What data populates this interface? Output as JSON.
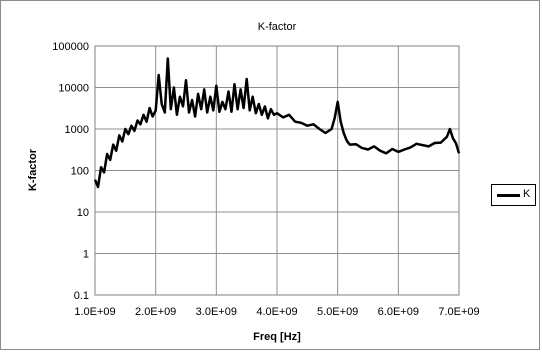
{
  "chart_data": {
    "type": "line",
    "title": "K-factor",
    "xlabel": "Freq [Hz]",
    "ylabel": "K-factor",
    "xscale": "linear",
    "yscale": "log",
    "xlim": [
      1000000000,
      7000000000
    ],
    "ylim": [
      0.1,
      100000
    ],
    "x_ticks": [
      1000000000,
      2000000000,
      3000000000,
      4000000000,
      5000000000,
      6000000000,
      7000000000
    ],
    "x_tick_labels": [
      "1.0E+09",
      "2.0E+09",
      "3.0E+09",
      "4.0E+09",
      "5.0E+09",
      "6.0E+09",
      "7.0E+09"
    ],
    "y_ticks": [
      0.1,
      1,
      10,
      100,
      1000,
      10000,
      100000
    ],
    "y_tick_labels": [
      "0.1",
      "1",
      "10",
      "100",
      "1000",
      "10000",
      "100000"
    ],
    "grid": true,
    "legend": "right",
    "line_color": "#000000",
    "series": [
      {
        "name": "K",
        "x": [
          1000000000,
          1050000000,
          1100000000,
          1150000000,
          1200000000,
          1250000000,
          1300000000,
          1350000000,
          1400000000,
          1450000000,
          1500000000,
          1550000000,
          1600000000,
          1650000000,
          1700000000,
          1750000000,
          1800000000,
          1850000000,
          1900000000,
          1950000000,
          2000000000,
          2050000000,
          2100000000,
          2150000000,
          2200000000,
          2250000000,
          2300000000,
          2350000000,
          2400000000,
          2450000000,
          2500000000,
          2550000000,
          2600000000,
          2650000000,
          2700000000,
          2750000000,
          2800000000,
          2850000000,
          2900000000,
          2950000000,
          3000000000,
          3050000000,
          3100000000,
          3150000000,
          3200000000,
          3250000000,
          3300000000,
          3350000000,
          3400000000,
          3450000000,
          3500000000,
          3550000000,
          3600000000,
          3650000000,
          3700000000,
          3750000000,
          3800000000,
          3850000000,
          3900000000,
          3950000000,
          4000000000,
          4100000000,
          4200000000,
          4300000000,
          4400000000,
          4500000000,
          4600000000,
          4700000000,
          4800000000,
          4900000000,
          4950000000,
          5000000000,
          5050000000,
          5100000000,
          5150000000,
          5200000000,
          5300000000,
          5400000000,
          5500000000,
          5600000000,
          5700000000,
          5800000000,
          5900000000,
          6000000000,
          6100000000,
          6200000000,
          6300000000,
          6400000000,
          6500000000,
          6600000000,
          6700000000,
          6800000000,
          6850000000,
          6900000000,
          6950000000,
          7000000000
        ],
        "values": [
          60,
          40,
          120,
          90,
          250,
          180,
          420,
          300,
          700,
          500,
          1000,
          750,
          1200,
          900,
          1600,
          1300,
          2200,
          1500,
          3200,
          2000,
          2800,
          20000,
          4000,
          2500,
          50000,
          3000,
          10000,
          2200,
          6000,
          3500,
          15000,
          2500,
          5000,
          2000,
          7000,
          3000,
          9000,
          2500,
          6000,
          2800,
          11000,
          2600,
          4500,
          3000,
          8000,
          2600,
          12000,
          3000,
          9000,
          3200,
          16000,
          2800,
          6000,
          2400,
          4000,
          2200,
          3500,
          1800,
          3000,
          2200,
          2400,
          1900,
          2200,
          1500,
          1400,
          1200,
          1300,
          1000,
          800,
          1000,
          1800,
          4500,
          1500,
          800,
          520,
          420,
          430,
          350,
          320,
          380,
          300,
          260,
          330,
          280,
          320,
          360,
          440,
          410,
          380,
          460,
          470,
          650,
          1000,
          600,
          450,
          260
        ]
      }
    ]
  }
}
